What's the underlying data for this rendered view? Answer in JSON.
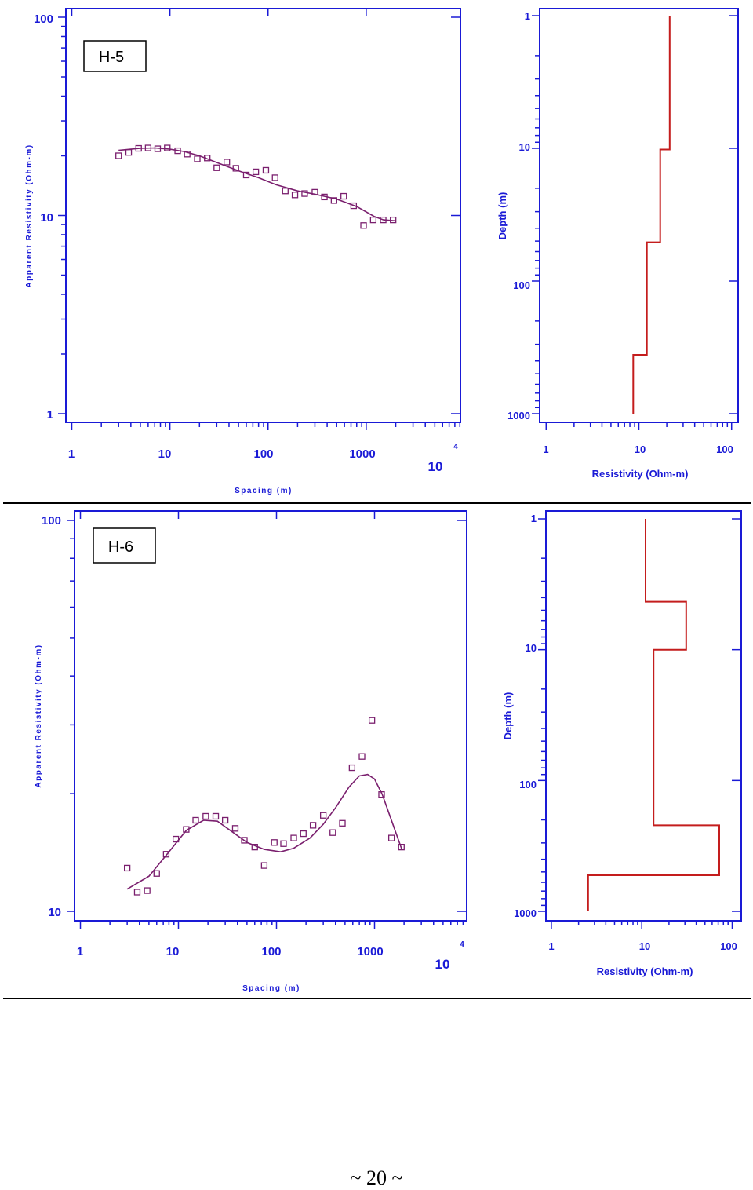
{
  "colors": {
    "axis": "#1a1ad6",
    "curve": "#7a1f6e",
    "marker": "#7a1f6e",
    "model": "#c41d1d",
    "label": "#000000"
  },
  "page_number": "~ 20 ~",
  "chart_data": [
    {
      "type": "scatter",
      "panel_label": "H-5",
      "xlabel": "Spacing (m)",
      "ylabel": "Apparent Resistivity (Ohm-m)",
      "xscale": "log",
      "yscale": "log",
      "xlim": [
        1,
        10000
      ],
      "ylim": [
        1,
        100
      ],
      "xticklabels": [
        "1",
        "10",
        "100",
        "1000",
        "10",
        "4"
      ],
      "yticklabels": [
        "100",
        "10",
        "1"
      ],
      "series": [
        {
          "kind": "points",
          "x": [
            3,
            3.8,
            4.8,
            6,
            7.5,
            9.4,
            12,
            15,
            19,
            24,
            30,
            38,
            47,
            60,
            75,
            95,
            118,
            150,
            188,
            236,
            300,
            375,
            470,
            590,
            745,
            940,
            1180,
            1490,
            1880
          ],
          "y": [
            20,
            20.8,
            21.8,
            21.9,
            21.7,
            21.9,
            21.2,
            20.4,
            19.3,
            19.5,
            17.4,
            18.6,
            17.3,
            16,
            16.6,
            16.9,
            15.5,
            13.3,
            12.7,
            12.9,
            13.1,
            12.4,
            11.9,
            12.5,
            11.2,
            8.9,
            9.5,
            9.5,
            9.5
          ]
        },
        {
          "kind": "curve",
          "x": [
            3,
            4,
            5,
            7,
            10,
            14,
            20,
            30,
            50,
            80,
            120,
            200,
            300,
            500,
            800,
            1200,
            1500,
            2000
          ],
          "y": [
            21.3,
            21.6,
            21.8,
            21.9,
            21.6,
            21,
            20,
            18.5,
            16.8,
            15.5,
            14.3,
            13.3,
            12.8,
            12.1,
            11.1,
            9.9,
            9.5,
            9.4
          ]
        }
      ]
    },
    {
      "type": "line",
      "xlabel": "Resistivity (Ohm-m)",
      "ylabel": "Depth (m)",
      "xscale": "log",
      "yscale": "log",
      "xlim": [
        1,
        100
      ],
      "ylim": [
        1,
        1000
      ],
      "xticklabels": [
        "1",
        "10",
        "100"
      ],
      "yticklabels": [
        "1",
        "10",
        "100",
        "1000"
      ],
      "series": [
        {
          "kind": "step",
          "resistivity": [
            21.5,
            21.5,
            17,
            17,
            12.2,
            12.2,
            8.7,
            8.7
          ],
          "depth": [
            1,
            10.2,
            10.2,
            51,
            51,
            360,
            360,
            1000
          ]
        }
      ]
    },
    {
      "type": "scatter",
      "panel_label": "H-6",
      "xlabel": "Spacing (m)",
      "ylabel": "Apparent Resistivity (Ohm-m)",
      "xscale": "log",
      "yscale": "log",
      "xlim": [
        1,
        10000
      ],
      "ylim": [
        10,
        100
      ],
      "xticklabels": [
        "1",
        "10",
        "100",
        "1000",
        "10",
        "4"
      ],
      "yticklabels": [
        "100",
        "10"
      ],
      "series": [
        {
          "kind": "points",
          "x": [
            3,
            3.8,
            4.8,
            6,
            7.5,
            9.4,
            12,
            15,
            19,
            24,
            30,
            38,
            47,
            60,
            75,
            95,
            118,
            150,
            188,
            236,
            300,
            375,
            470,
            590,
            745,
            940,
            1180,
            1490,
            1880
          ],
          "y": [
            12.9,
            11.2,
            11.3,
            12.5,
            14,
            15.3,
            16.2,
            17.1,
            17.5,
            17.5,
            17.1,
            16.3,
            15.2,
            14.6,
            13.1,
            15,
            14.9,
            15.4,
            15.8,
            16.6,
            17.6,
            15.9,
            16.8,
            23.3,
            24.9,
            30.8,
            19.9,
            15.4,
            14.6
          ]
        },
        {
          "kind": "curve",
          "x": [
            3,
            5,
            8,
            12,
            18,
            25,
            35,
            50,
            75,
            110,
            150,
            220,
            300,
            400,
            550,
            700,
            850,
            1000,
            1200,
            1500,
            1900
          ],
          "y": [
            11.4,
            12.3,
            14.2,
            16.1,
            17.1,
            17,
            16,
            15,
            14.4,
            14.2,
            14.5,
            15.4,
            16.7,
            18.4,
            20.8,
            22.2,
            22.4,
            21.8,
            19.9,
            17,
            14.4
          ]
        }
      ]
    },
    {
      "type": "line",
      "xlabel": "Resistivity (Ohm-m)",
      "ylabel": "Depth (m)",
      "xscale": "log",
      "yscale": "log",
      "xlim": [
        1,
        100
      ],
      "ylim": [
        1,
        1000
      ],
      "xticklabels": [
        "1",
        "10",
        "100"
      ],
      "yticklabels": [
        "1",
        "10",
        "100",
        "1000"
      ],
      "series": [
        {
          "kind": "step",
          "resistivity": [
            11,
            11,
            31,
            31,
            13.5,
            13.5,
            72,
            72,
            2.55,
            2.55
          ],
          "depth": [
            1,
            4.3,
            4.3,
            10,
            10,
            220,
            220,
            530,
            530,
            1000
          ]
        }
      ]
    }
  ]
}
